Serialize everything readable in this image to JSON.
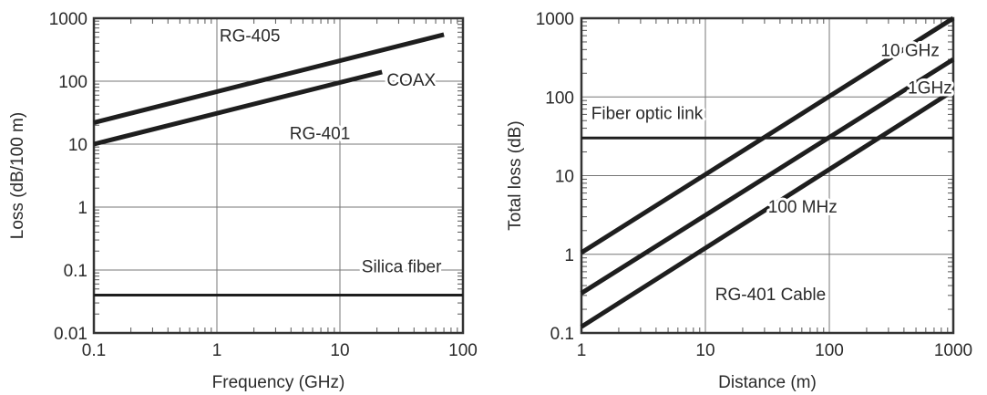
{
  "chart_data": [
    {
      "type": "line",
      "log_x": true,
      "log_y": true,
      "xlim": [
        0.1,
        100
      ],
      "ylim": [
        0.01,
        1000
      ],
      "xlabel": "Frequency (GHz)",
      "ylabel": "Loss (dB/100 m)",
      "x_tick_labels": [
        "0.1",
        "1",
        "10",
        "100"
      ],
      "x_tick_values": [
        0.1,
        1,
        10,
        100
      ],
      "y_tick_labels": [
        "0.01",
        "0.1",
        "1",
        "10",
        "100",
        "1000"
      ],
      "y_tick_values": [
        0.01,
        0.1,
        1,
        10,
        100,
        1000
      ],
      "grid": true,
      "series": [
        {
          "name": "RG-405",
          "x": [
            0.1,
            70
          ],
          "y": [
            22,
            550
          ]
        },
        {
          "name": "RG-401",
          "x": [
            0.1,
            22
          ],
          "y": [
            10,
            140
          ]
        },
        {
          "name": "Silica fiber",
          "x": [
            0.1,
            100
          ],
          "y": [
            0.04,
            0.04
          ]
        }
      ],
      "annotations": [
        {
          "text": "RG-405",
          "x": 1.05,
          "y": 430
        },
        {
          "text": "RG-401",
          "x": 3.9,
          "y": 12
        },
        {
          "text": "COAX",
          "x": 24,
          "y": 85
        },
        {
          "text": "Silica fiber",
          "x": 15,
          "y": 0.092
        }
      ]
    },
    {
      "type": "line",
      "log_x": true,
      "log_y": true,
      "xlim": [
        1,
        1000
      ],
      "ylim": [
        0.1,
        1000
      ],
      "xlabel": "Distance (m)",
      "ylabel": "Total loss (dB)",
      "x_tick_labels": [
        "1",
        "10",
        "100",
        "1000"
      ],
      "x_tick_values": [
        1,
        10,
        100,
        1000
      ],
      "y_tick_labels": [
        "0.1",
        "1",
        "10",
        "100",
        "1000"
      ],
      "y_tick_values": [
        0.1,
        1,
        10,
        100,
        1000
      ],
      "grid": true,
      "series": [
        {
          "name": "10 GHz",
          "x": [
            1,
            1000
          ],
          "y": [
            1.05,
            1000
          ]
        },
        {
          "name": "1GHz",
          "x": [
            1,
            1000
          ],
          "y": [
            0.32,
            300
          ]
        },
        {
          "name": "100 MHz",
          "x": [
            1,
            1000
          ],
          "y": [
            0.12,
            120
          ]
        },
        {
          "name": "Fiber optic link",
          "x": [
            1,
            1000
          ],
          "y": [
            30,
            30
          ]
        }
      ],
      "annotations": [
        {
          "text": "10 GHz",
          "x": 260,
          "y": 330
        },
        {
          "text": "1GHz",
          "x": 430,
          "y": 110
        },
        {
          "text": "100 MHz",
          "x": 32,
          "y": 3.4
        },
        {
          "text": "Fiber optic link",
          "x": 1.2,
          "y": 52
        },
        {
          "text": "RG-401 Cable",
          "x": 12,
          "y": 0.26
        }
      ]
    }
  ]
}
